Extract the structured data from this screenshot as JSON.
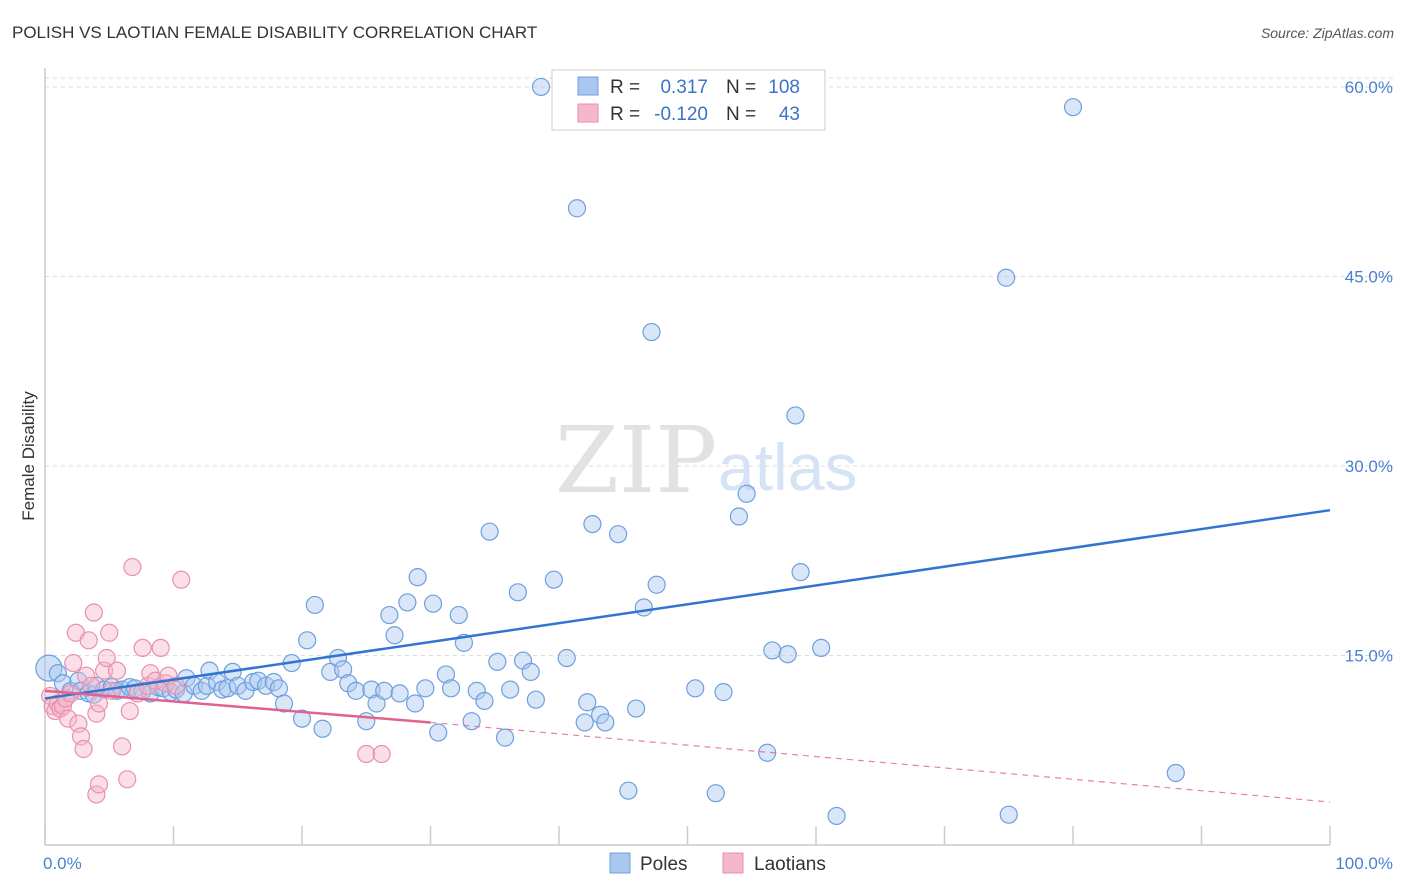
{
  "title": "POLISH VS LAOTIAN FEMALE DISABILITY CORRELATION CHART",
  "source": "Source: ZipAtlas.com",
  "watermark": {
    "zip": "ZIP",
    "atlas": "atlas"
  },
  "stats_legend": {
    "rows": [
      {
        "r_label": "R =",
        "r_value": "0.317",
        "n_label": "N =",
        "n_value": "108"
      },
      {
        "r_label": "R =",
        "r_value": "-0.120",
        "n_label": "N =",
        "n_value": "43"
      }
    ]
  },
  "colors": {
    "poles_fill": "#a9c7ef",
    "poles_stroke": "#6f9fde",
    "poles_line": "#3275d0",
    "laotians_fill": "#f5b8cb",
    "laotians_stroke": "#ea8fad",
    "laotians_line": "#e0628e",
    "grid": "#dddddd",
    "tick_label": "#4a7fd0"
  },
  "chart_data": {
    "type": "scatter",
    "title": "POLISH VS LAOTIAN FEMALE DISABILITY CORRELATION CHART",
    "xlabel": "",
    "ylabel": "Female Disability",
    "xlim": [
      0,
      100
    ],
    "ylim": [
      0,
      61.5
    ],
    "x_tick_labels": [
      {
        "value": 0,
        "label": "0.0%"
      },
      {
        "value": 100,
        "label": "100.0%"
      }
    ],
    "x_minor_ticks": [
      0,
      10,
      20,
      30,
      40,
      50,
      60,
      70,
      80,
      90,
      100
    ],
    "y_ticks": [
      {
        "value": 15,
        "label": "15.0%"
      },
      {
        "value": 30,
        "label": "30.0%"
      },
      {
        "value": 45,
        "label": "45.0%"
      },
      {
        "value": 60,
        "label": "60.0%"
      }
    ],
    "grid": "horizontal dashed",
    "legend": {
      "position": "bottom-center",
      "entries": [
        "Poles",
        "Laotians"
      ]
    },
    "series": [
      {
        "name": "Poles",
        "r": 0.317,
        "n": 108,
        "trend": {
          "x0": 0,
          "y0": 11.6,
          "x1": 100,
          "y1": 26.5,
          "style": "solid"
        },
        "points": [
          [
            0.3,
            14.0
          ],
          [
            1.0,
            13.6
          ],
          [
            1.4,
            12.8
          ],
          [
            2.0,
            12.2
          ],
          [
            2.6,
            13.0
          ],
          [
            2.8,
            12.2
          ],
          [
            3.4,
            12.0
          ],
          [
            3.8,
            11.9
          ],
          [
            4.0,
            12.6
          ],
          [
            4.6,
            12.3
          ],
          [
            5.2,
            12.5
          ],
          [
            5.6,
            12.2
          ],
          [
            6.0,
            12.3
          ],
          [
            6.6,
            12.5
          ],
          [
            7.0,
            12.4
          ],
          [
            7.6,
            12.2
          ],
          [
            8.2,
            12.0
          ],
          [
            8.8,
            12.5
          ],
          [
            9.2,
            12.4
          ],
          [
            9.8,
            12.1
          ],
          [
            10.2,
            12.3
          ],
          [
            10.8,
            12.0
          ],
          [
            11.0,
            13.2
          ],
          [
            11.6,
            12.6
          ],
          [
            12.2,
            12.2
          ],
          [
            12.6,
            12.6
          ],
          [
            12.8,
            13.8
          ],
          [
            13.4,
            12.9
          ],
          [
            13.8,
            12.3
          ],
          [
            14.2,
            12.4
          ],
          [
            14.6,
            13.7
          ],
          [
            15.0,
            12.6
          ],
          [
            15.6,
            12.2
          ],
          [
            16.2,
            12.9
          ],
          [
            16.6,
            13.0
          ],
          [
            17.2,
            12.6
          ],
          [
            17.8,
            12.9
          ],
          [
            18.2,
            12.4
          ],
          [
            18.6,
            11.2
          ],
          [
            19.2,
            14.4
          ],
          [
            20.0,
            10.0
          ],
          [
            20.4,
            16.2
          ],
          [
            21.0,
            19.0
          ],
          [
            21.6,
            9.2
          ],
          [
            22.2,
            13.7
          ],
          [
            22.8,
            14.8
          ],
          [
            23.2,
            13.9
          ],
          [
            23.6,
            12.8
          ],
          [
            24.2,
            12.2
          ],
          [
            25.0,
            9.8
          ],
          [
            25.4,
            12.3
          ],
          [
            25.8,
            11.2
          ],
          [
            26.4,
            12.2
          ],
          [
            26.8,
            18.2
          ],
          [
            27.2,
            16.6
          ],
          [
            27.6,
            12.0
          ],
          [
            28.2,
            19.2
          ],
          [
            28.8,
            11.2
          ],
          [
            29.0,
            21.2
          ],
          [
            29.6,
            12.4
          ],
          [
            30.2,
            19.1
          ],
          [
            30.6,
            8.9
          ],
          [
            31.2,
            13.5
          ],
          [
            31.6,
            12.4
          ],
          [
            32.2,
            18.2
          ],
          [
            32.6,
            16.0
          ],
          [
            33.2,
            9.8
          ],
          [
            33.6,
            12.2
          ],
          [
            34.2,
            11.4
          ],
          [
            34.6,
            24.8
          ],
          [
            35.2,
            14.5
          ],
          [
            35.8,
            8.5
          ],
          [
            36.2,
            12.3
          ],
          [
            36.8,
            20.0
          ],
          [
            37.2,
            14.6
          ],
          [
            37.8,
            13.7
          ],
          [
            38.2,
            11.5
          ],
          [
            38.6,
            60.0
          ],
          [
            39.6,
            21.0
          ],
          [
            40.6,
            14.8
          ],
          [
            41.4,
            50.4
          ],
          [
            42.0,
            9.7
          ],
          [
            42.2,
            11.3
          ],
          [
            42.6,
            25.4
          ],
          [
            43.2,
            10.3
          ],
          [
            43.6,
            9.7
          ],
          [
            44.6,
            24.6
          ],
          [
            45.4,
            4.3
          ],
          [
            46.0,
            10.8
          ],
          [
            46.6,
            18.8
          ],
          [
            47.2,
            40.6
          ],
          [
            47.6,
            20.6
          ],
          [
            50.6,
            12.4
          ],
          [
            52.2,
            4.1
          ],
          [
            52.8,
            12.1
          ],
          [
            54.0,
            26.0
          ],
          [
            54.6,
            27.8
          ],
          [
            56.2,
            7.3
          ],
          [
            56.6,
            15.4
          ],
          [
            57.8,
            15.1
          ],
          [
            58.4,
            34.0
          ],
          [
            58.8,
            21.6
          ],
          [
            60.4,
            15.6
          ],
          [
            61.6,
            2.3
          ],
          [
            74.8,
            44.9
          ],
          [
            75.0,
            2.4
          ],
          [
            80.0,
            58.4
          ],
          [
            88.0,
            5.7
          ]
        ]
      },
      {
        "name": "Laotians",
        "r": -0.12,
        "n": 43,
        "trend": {
          "x0": 0,
          "y0": 12.2,
          "x1": 30,
          "y1": 9.7,
          "style": "solid",
          "dash_to": {
            "x": 100,
            "y": 3.4
          }
        },
        "points": [
          [
            0.4,
            11.8
          ],
          [
            0.6,
            11.0
          ],
          [
            0.8,
            10.6
          ],
          [
            1.0,
            11.2
          ],
          [
            1.2,
            10.8
          ],
          [
            1.4,
            11.0
          ],
          [
            1.6,
            11.6
          ],
          [
            1.8,
            10.0
          ],
          [
            2.0,
            12.0
          ],
          [
            2.2,
            14.4
          ],
          [
            2.4,
            16.8
          ],
          [
            2.6,
            9.6
          ],
          [
            2.8,
            8.6
          ],
          [
            3.0,
            7.6
          ],
          [
            3.2,
            13.4
          ],
          [
            3.4,
            16.2
          ],
          [
            3.6,
            12.6
          ],
          [
            3.8,
            18.4
          ],
          [
            4.0,
            10.4
          ],
          [
            4.2,
            11.2
          ],
          [
            4.6,
            13.8
          ],
          [
            4.8,
            14.8
          ],
          [
            5.0,
            16.8
          ],
          [
            5.2,
            12.2
          ],
          [
            5.6,
            13.8
          ],
          [
            6.0,
            7.8
          ],
          [
            6.4,
            5.2
          ],
          [
            6.6,
            10.6
          ],
          [
            6.8,
            22.0
          ],
          [
            7.2,
            12.0
          ],
          [
            7.6,
            15.6
          ],
          [
            8.0,
            12.6
          ],
          [
            8.2,
            13.6
          ],
          [
            8.6,
            13.0
          ],
          [
            9.0,
            15.6
          ],
          [
            9.4,
            12.8
          ],
          [
            9.6,
            13.4
          ],
          [
            10.2,
            12.6
          ],
          [
            10.6,
            21.0
          ],
          [
            25.0,
            7.2
          ],
          [
            26.2,
            7.2
          ],
          [
            4.0,
            4.0
          ],
          [
            4.2,
            4.8
          ]
        ]
      }
    ]
  }
}
